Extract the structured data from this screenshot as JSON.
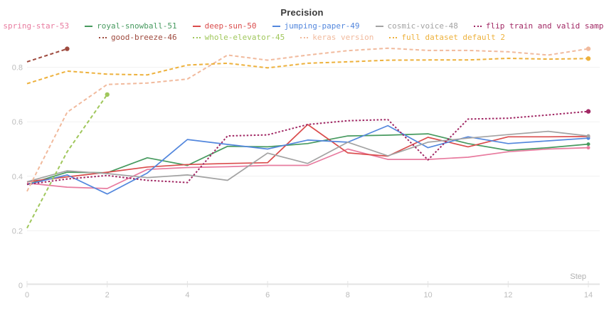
{
  "chart_data": {
    "type": "line",
    "title": "Precision",
    "xlabel": "Step",
    "xlim": [
      0,
      14
    ],
    "ylim": [
      0,
      0.92
    ],
    "x_ticks": [
      0,
      2,
      4,
      6,
      8,
      10,
      12,
      14
    ],
    "y_ticks": [
      0,
      0.2,
      0.4,
      0.6,
      0.8
    ],
    "y_tick_labels": [
      "0",
      "0.2",
      "0.4",
      "0.6",
      "0.8"
    ],
    "grid": "horizontal",
    "legend_position": "top",
    "series": [
      {
        "name": "spring-star-53",
        "color": "#E87B9F",
        "style": "solid",
        "values": [
          0.375,
          0.36,
          0.355,
          0.425,
          0.432,
          0.435,
          0.44,
          0.44,
          0.5,
          0.462,
          0.462,
          0.47,
          0.49,
          0.5,
          0.505
        ]
      },
      {
        "name": "royal-snowball-51",
        "color": "#479A5F",
        "style": "solid",
        "values": [
          0.37,
          0.415,
          0.413,
          0.468,
          0.44,
          0.51,
          0.508,
          0.52,
          0.548,
          0.551,
          0.556,
          0.52,
          0.495,
          0.505,
          0.518
        ]
      },
      {
        "name": "deep-sun-50",
        "color": "#DA4C4C",
        "style": "solid",
        "values": [
          0.38,
          0.398,
          0.415,
          0.434,
          0.443,
          0.447,
          0.45,
          0.59,
          0.486,
          0.474,
          0.543,
          0.508,
          0.545,
          0.545,
          0.546
        ]
      },
      {
        "name": "jumping-paper-49",
        "color": "#5387DD",
        "style": "solid",
        "values": [
          0.37,
          0.405,
          0.335,
          0.412,
          0.535,
          0.517,
          0.5,
          0.533,
          0.525,
          0.586,
          0.505,
          0.545,
          0.52,
          0.53,
          0.54
        ]
      },
      {
        "name": "cosmic-voice-48",
        "color": "#A3A3A3",
        "style": "solid",
        "values": [
          0.38,
          0.42,
          0.41,
          0.395,
          0.405,
          0.385,
          0.485,
          0.447,
          0.525,
          0.475,
          0.525,
          0.54,
          0.553,
          0.565,
          0.548
        ]
      },
      {
        "name": "flip train and valid sample",
        "color": "#A12864",
        "style": "dotted",
        "values": [
          0.37,
          0.39,
          0.403,
          0.385,
          0.377,
          0.548,
          0.552,
          0.59,
          0.604,
          0.608,
          0.46,
          0.61,
          0.613,
          0.625,
          0.638
        ]
      },
      {
        "name": "good-breeze-46",
        "color": "#9E4A3E",
        "style": "dashed",
        "x": [
          0,
          1
        ],
        "values": [
          0.82,
          0.868
        ]
      },
      {
        "name": "whole-elevator-45",
        "color": "#A0C75C",
        "style": "dashed",
        "x": [
          0,
          1,
          2
        ],
        "values": [
          0.21,
          0.49,
          0.7
        ]
      },
      {
        "name": "keras version",
        "color": "#F1BA9D",
        "style": "dashed",
        "values": [
          0.345,
          0.635,
          0.737,
          0.742,
          0.757,
          0.845,
          0.826,
          0.845,
          0.861,
          0.87,
          0.862,
          0.862,
          0.857,
          0.845,
          0.868
        ]
      },
      {
        "name": "full dataset default 2",
        "color": "#EDB13C",
        "style": "dashed",
        "values": [
          0.74,
          0.786,
          0.775,
          0.772,
          0.808,
          0.815,
          0.798,
          0.815,
          0.82,
          0.826,
          0.827,
          0.827,
          0.833,
          0.83,
          0.832
        ]
      }
    ]
  },
  "legend_rows": [
    [
      0,
      1,
      2,
      3,
      4,
      5
    ],
    [
      6,
      7,
      8,
      9
    ]
  ],
  "axis_colors": {
    "tick_label": "#bcbcbc",
    "axis_line": "#e3e3e3",
    "gridline": "#f1f1f1",
    "step_label": "#b0b0b0"
  }
}
